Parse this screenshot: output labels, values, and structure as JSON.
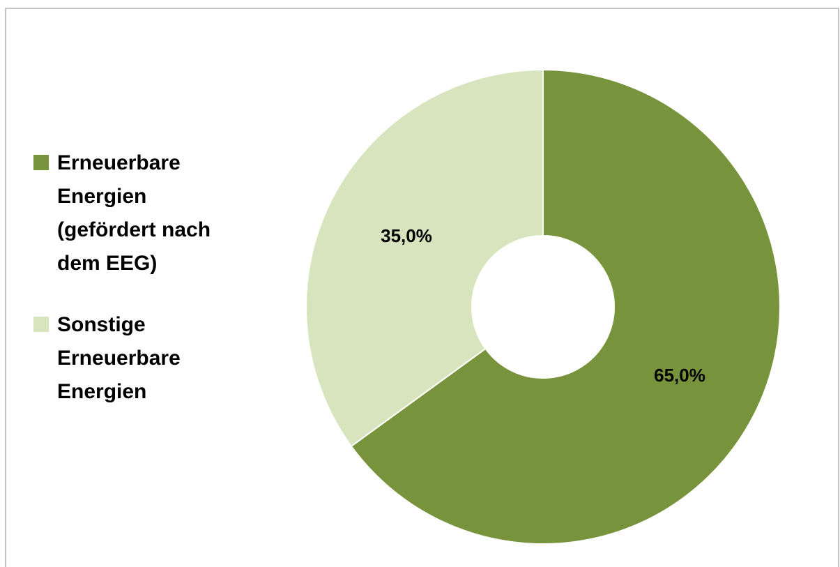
{
  "chart_data": {
    "type": "donut",
    "categories": [
      "Erneuerbare Energien (gefördert nach dem EEG)",
      "Sonstige Erneuerbare Energien"
    ],
    "values": [
      65,
      35
    ],
    "value_labels": [
      "65,0%",
      "35,0%"
    ],
    "colors": [
      "#77933c",
      "#d7e4bd"
    ],
    "legend": "left"
  }
}
